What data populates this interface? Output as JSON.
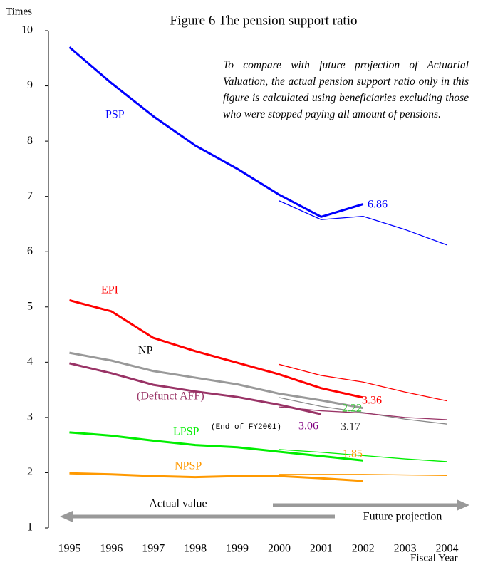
{
  "chart_data": {
    "type": "line",
    "title": "Figure 6 The pension support ratio",
    "ylabel": "Times",
    "xlabel": "Fiscal Year",
    "note": "To compare with future projection of Actuarial Valuation, the actual pension support ratio only in this figure is calculated using beneficiaries excluding those who were stopped paying all amount of pensions.",
    "annotations": [
      "(End of FY2001)",
      "Actual value",
      "Future projection"
    ],
    "x": [
      1995,
      1996,
      1997,
      1998,
      1999,
      2000,
      2001,
      2002,
      2003,
      2004
    ],
    "xlim": [
      1994.5,
      2004.5
    ],
    "xticks": [
      1995,
      1996,
      1997,
      1998,
      1999,
      2000,
      2001,
      2002,
      2003,
      2004
    ],
    "ylim": [
      1,
      10
    ],
    "yticks": [
      1,
      2,
      3,
      4,
      5,
      6,
      7,
      8,
      9,
      10
    ],
    "series": [
      {
        "name": "PSP",
        "color": "#0000ff",
        "values": [
          9.7,
          9.05,
          8.45,
          7.92,
          7.5,
          7.03,
          6.63,
          6.86,
          null,
          null
        ],
        "projection": [
          null,
          null,
          null,
          null,
          null,
          6.92,
          6.58,
          6.64,
          6.4,
          6.12
        ]
      },
      {
        "name": "EPI",
        "color": "#ff0000",
        "values": [
          5.12,
          4.92,
          4.44,
          4.2,
          3.99,
          3.78,
          3.53,
          3.36,
          null,
          null
        ],
        "projection": [
          null,
          null,
          null,
          null,
          null,
          3.96,
          3.76,
          3.64,
          3.46,
          3.3
        ]
      },
      {
        "name": "NP",
        "color": "#999999",
        "values": [
          4.17,
          4.03,
          3.84,
          3.72,
          3.6,
          3.43,
          3.31,
          3.17,
          null,
          null
        ],
        "projection": [
          null,
          null,
          null,
          null,
          null,
          3.36,
          3.2,
          3.09,
          2.97,
          2.88
        ]
      },
      {
        "name": "(Defunct AFF)",
        "color": "#993366",
        "values": [
          3.98,
          3.8,
          3.59,
          3.47,
          3.37,
          3.23,
          3.06,
          null,
          null,
          null
        ],
        "projection": [
          null,
          null,
          null,
          null,
          null,
          3.19,
          3.12,
          3.08,
          3.0,
          2.96
        ]
      },
      {
        "name": "LPSP",
        "color": "#00ee00",
        "values": [
          2.73,
          2.67,
          2.58,
          2.5,
          2.46,
          2.38,
          2.3,
          2.22,
          null,
          null
        ],
        "projection": [
          null,
          null,
          null,
          null,
          null,
          2.42,
          2.37,
          2.31,
          2.25,
          2.2
        ]
      },
      {
        "name": "NPSP",
        "color": "#ff9900",
        "values": [
          1.99,
          1.97,
          1.94,
          1.92,
          1.94,
          1.94,
          1.9,
          1.85,
          null,
          null
        ],
        "projection": [
          null,
          null,
          null,
          null,
          null,
          1.97,
          1.97,
          1.97,
          1.96,
          1.95
        ]
      }
    ]
  }
}
